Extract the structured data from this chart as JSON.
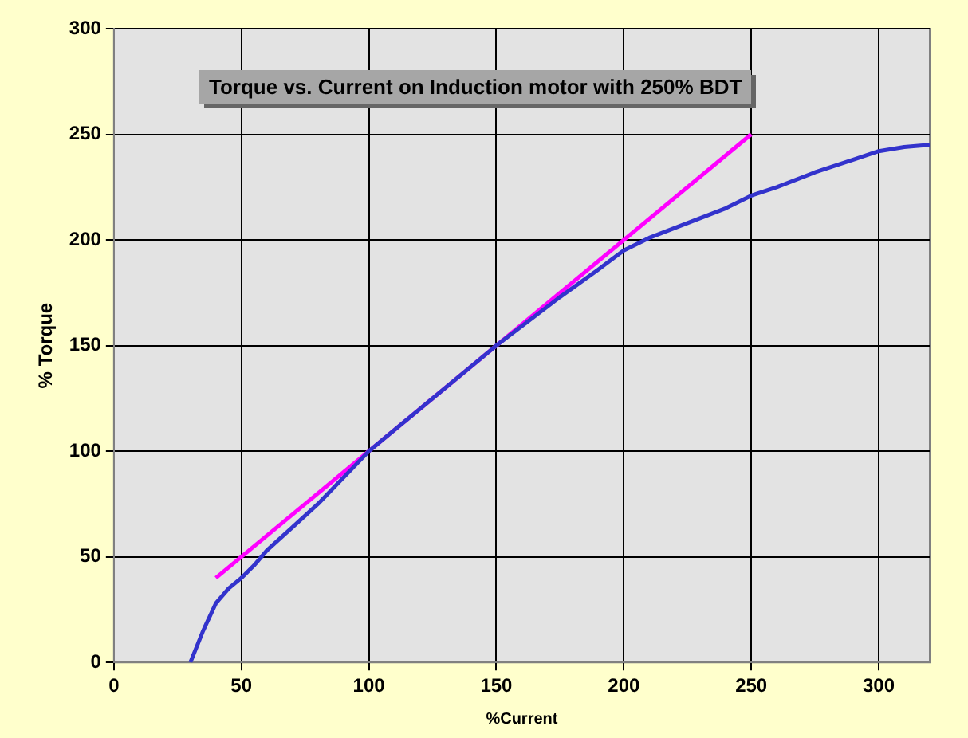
{
  "chart_data": {
    "type": "line",
    "title": "Torque vs. Current on Induction motor with 250% BDT",
    "xlabel": "%Current",
    "ylabel": "% Torque",
    "xlim": [
      0,
      320
    ],
    "xticks": [
      0,
      50,
      100,
      150,
      200,
      250,
      300
    ],
    "ylim": [
      0,
      300
    ],
    "yticks": [
      0,
      50,
      100,
      150,
      200,
      250,
      300
    ],
    "grid": true,
    "legend": false,
    "marker": "none",
    "line_style": "solid",
    "series": [
      {
        "color": "#3333cc",
        "x": [
          30,
          33,
          35,
          40,
          45,
          50,
          55,
          60,
          70,
          80,
          100,
          120,
          150,
          175,
          190,
          200,
          210,
          225,
          240,
          250,
          260,
          275,
          290,
          300,
          310,
          320
        ],
        "values": [
          0,
          9,
          15,
          28,
          35,
          40,
          46,
          53,
          64,
          75,
          100,
          120,
          150,
          173,
          186,
          195,
          201,
          208,
          215,
          221,
          225,
          232,
          238,
          242,
          244,
          245
        ]
      },
      {
        "color": "#ff00ff",
        "x": [
          40,
          250
        ],
        "values": [
          40,
          250
        ]
      }
    ]
  }
}
